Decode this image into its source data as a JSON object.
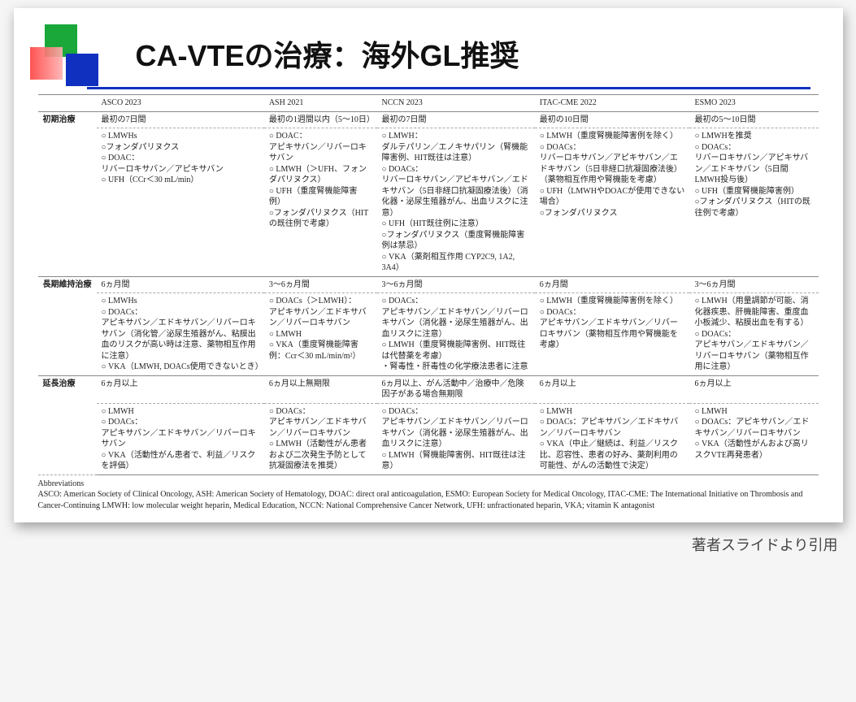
{
  "title": "CA-VTEの治療：海外GL推奨",
  "credit": "著者スライドより引用",
  "columns": [
    "ASCO 2023",
    "ASH 2021",
    "NCCN 2023",
    "ITAC-CME 2022",
    "ESMO 2023"
  ],
  "rows": [
    {
      "label": "初期治療",
      "period": [
        "最初の7日間",
        "最初の1週間以内（5～10日）",
        "最初の7日間",
        "最初の10日間",
        "最初の5～10日間"
      ],
      "content": [
        "○ LMWHs\n○フォンダパリヌクス\n○ DOAC：\nリバーロキサバン／アピキサバン\n○ UFH（CCr＜30 mL/min）",
        "○ DOAC：\nアピキサバン／リバーロキサバン\n○ LMWH（＞UFH、フォンダパリヌクス）\n○ UFH（重度腎機能障害例）\n○フォンダパリヌクス（HITの既往例で考慮）",
        "○ LMWH：\nダルテパリン／エノキサパリン（腎機能障害例、HIT既往は注意）\n○ DOACs：\nリバーロキサバン／アピキサバン／エドキサバン（5日非経口抗凝固療法後）（消化器・泌尿生殖器がん、出血リスクに注意）\n○ UFH（HIT既往例に注意）\n○フォンダパリヌクス（重度腎機能障害例は禁忌）\n○ VKA（薬剤相互作用 CYP2C9, 1A2, 3A4）",
        "○ LMWH（重度腎機能障害例を除く）\n○ DOACs：\nリバーロキサバン／アピキサバン／エドキサバン（5日非経口抗凝固療法後）（薬物相互作用や腎機能を考慮）\n○ UFH（LMWHやDOACが使用できない場合）\n○フォンダパリヌクス",
        "○ LMWHを推奨\n○ DOACs：\nリバーロキサバン／アピキサバン／エドキサバン（5日間LMWH投与後）\n○ UFH（重度腎機能障害例）\n○フォンダパリヌクス（HITの既往例で考慮）"
      ]
    },
    {
      "label": "長期維持治療",
      "period": [
        "6ヵ月間",
        "3～6ヵ月間",
        "3～6ヵ月間",
        "6ヵ月間",
        "3～6ヵ月間"
      ],
      "content": [
        "○ LMWHs\n○ DOACs：\nアピキサバン／エドキサバン／リバーロキサバン（消化管／泌尿生殖器がん、粘膜出血のリスクが高い時は注意、薬物相互作用に注意）\n○ VKA（LMWH, DOACs使用できないとき）",
        "○ DOACs（＞LMWH）：\nアピキサバン／エドキサバン／リバーロキサバン\n○ LMWH\n○ VKA（重度腎機能障害例：Ccr＜30 mL/min/m²）",
        "○ DOACs：\nアピキサバン／エドキサバン／リバーロキサバン（消化器・泌尿生殖器がん、出血リスクに注意）\n○ LMWH（重度腎機能障害例、HIT既往は代替薬を考慮）\n・腎毒性・肝毒性の化学療法患者に注意",
        "○ LMWH（重度腎機能障害例を除く）\n○ DOACs：\nアピキサバン／エドキサバン／リバーロキサバン（薬物相互作用や腎機能を考慮）",
        "○ LMWH（用量調節が可能、消化器疾患、肝機能障害、重度血小板減少、粘膜出血を有する）\n○ DOACs：\nアピキサバン／エドキサバン／リバーロキサバン（薬物相互作用に注意）"
      ]
    },
    {
      "label": "延長治療",
      "period": [
        "6ヵ月以上",
        "6ヵ月以上無期限",
        "6ヵ月以上、がん活動中／治療中／危険因子がある場合無期限",
        "6ヵ月以上",
        "6ヵ月以上"
      ],
      "content": [
        "○ LMWH\n○ DOACs：\nアピキサバン／エドキサバン／リバーロキサバン\n○ VKA（活動性がん患者で、利益／リスクを評価）",
        "○ DOACs：\nアピキサバン／エドキサバン／リバーロキサバン\n○ LMWH（活動性がん患者および二次発生予防として抗凝固療法を推奨）",
        "○ DOACs：\nアピキサバン／エドキサバン／リバーロキサバン（消化器・泌尿生殖器がん、出血リスクに注意）\n○ LMWH（腎機能障害例、HIT既往は注意）",
        "○ LMWH\n○ DOACs：アピキサバン／エドキサバン／リバーロキサバン\n○ VKA（中止／継続は、利益／リスク比、忍容性、患者の好み、薬剤利用の可能性、がんの活動性で決定）",
        "○ LMWH\n○ DOACs：アピキサバン／エドキサバン／リバーロキサバン\n○ VKA（活動性がんおよび高リスクVTE再発患者）"
      ]
    }
  ],
  "abbrev_title": "Abbreviations",
  "abbrev_text": "ASCO: American Society of Clinical Oncology, ASH: American Society of Hematology, DOAC: direct oral anticoagulation, ESMO: European Society for Medical Oncology, ITAC-CME: The International Initiative on Thrombosis and Cancer-Continuing LMWH: low molecular weight heparin, Medical Education, NCCN: National Comprehensive Cancer Network, UFH: unfractionated heparin, VKA; vitamin K antagonist",
  "colors": {
    "green": "#1aa83a",
    "red": "#ff4040",
    "blue": "#1030c0",
    "text": "#222222",
    "background": "#ffffff"
  }
}
